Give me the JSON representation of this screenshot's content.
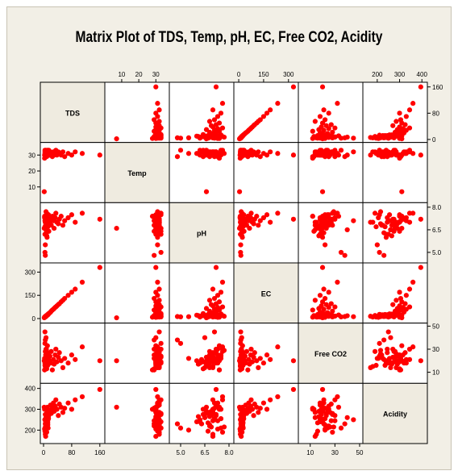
{
  "chart_data": {
    "type": "scatter-matrix",
    "title": "Matrix Plot of TDS, Temp, pH, EC, Free CO2, Acidity",
    "marker_color": "#ff0000",
    "diag_color": "#efebe0",
    "variables": [
      {
        "name": "TDS",
        "range": [
          0,
          165
        ],
        "ticks": [
          0,
          80,
          160
        ],
        "tick_labels": [
          "0",
          "80",
          "160"
        ]
      },
      {
        "name": "Temp",
        "range": [
          2,
          36
        ],
        "ticks": [
          10,
          20,
          30
        ],
        "tick_labels": [
          "10",
          "20",
          "30"
        ]
      },
      {
        "name": "pH",
        "range": [
          4.5,
          8.1
        ],
        "ticks": [
          5.0,
          6.5,
          8.0
        ],
        "tick_labels": [
          "5.0",
          "6.5",
          "8.0"
        ]
      },
      {
        "name": "EC",
        "range": [
          -10,
          340
        ],
        "ticks": [
          0,
          150,
          300
        ],
        "tick_labels": [
          "0",
          "150",
          "300"
        ]
      },
      {
        "name": "Free CO2",
        "range": [
          3,
          50
        ],
        "ticks": [
          10,
          30,
          50
        ],
        "tick_labels": [
          "10",
          "30",
          "50"
        ]
      },
      {
        "name": "Acidity",
        "range": [
          150,
          410
        ],
        "ticks": [
          200,
          300,
          400
        ],
        "tick_labels": [
          "200",
          "300",
          "400"
        ]
      }
    ],
    "axis_sides": {
      "top": [
        1,
        3,
        5
      ],
      "bottom": [
        0,
        2,
        4
      ],
      "left": [
        1,
        3,
        5
      ],
      "right": [
        0,
        2,
        4
      ]
    },
    "observations": [
      [
        5,
        32,
        7.0,
        10,
        15,
        180
      ],
      [
        4,
        30,
        6.2,
        10,
        18,
        250
      ],
      [
        5,
        31,
        5.5,
        12,
        22,
        200
      ],
      [
        6,
        29,
        6.8,
        14,
        25,
        220
      ],
      [
        8,
        32,
        7.2,
        16,
        30,
        270
      ],
      [
        10,
        31,
        6.0,
        22,
        20,
        240
      ],
      [
        3,
        28,
        7.4,
        9,
        12,
        300
      ],
      [
        4,
        33,
        5.0,
        11,
        35,
        210
      ],
      [
        7,
        30,
        6.5,
        18,
        40,
        260
      ],
      [
        9,
        32,
        7.6,
        20,
        28,
        190
      ],
      [
        2,
        7,
        6.6,
        5,
        20,
        310
      ],
      [
        6,
        30,
        7.0,
        15,
        14,
        170
      ],
      [
        5,
        29,
        4.8,
        13,
        38,
        230
      ],
      [
        4,
        32,
        7.1,
        12,
        45,
        250
      ],
      [
        11,
        31,
        6.9,
        25,
        26,
        215
      ],
      [
        3,
        30,
        7.3,
        8,
        22,
        205
      ],
      [
        12,
        30,
        6.7,
        26,
        16,
        235
      ],
      [
        14,
        31,
        7.5,
        30,
        22,
        255
      ],
      [
        15,
        33,
        6.4,
        32,
        19,
        275
      ],
      [
        18,
        30,
        7.0,
        38,
        24,
        295
      ],
      [
        20,
        32,
        7.2,
        42,
        18,
        320
      ],
      [
        22,
        31,
        6.8,
        48,
        28,
        280
      ],
      [
        25,
        29,
        7.4,
        55,
        12,
        305
      ],
      [
        28,
        32,
        7.1,
        60,
        21,
        330
      ],
      [
        30,
        30,
        6.6,
        65,
        17,
        290
      ],
      [
        33,
        31,
        7.3,
        72,
        25,
        315
      ],
      [
        35,
        33,
        7.6,
        75,
        30,
        345
      ],
      [
        38,
        30,
        7.0,
        82,
        19,
        300
      ],
      [
        42,
        32,
        6.9,
        90,
        23,
        270
      ],
      [
        45,
        31,
        7.2,
        96,
        27,
        325
      ],
      [
        50,
        30,
        7.4,
        108,
        20,
        310
      ],
      [
        55,
        32,
        6.8,
        118,
        14,
        285
      ],
      [
        60,
        29,
        7.1,
        130,
        22,
        305
      ],
      [
        70,
        31,
        7.3,
        150,
        18,
        330
      ],
      [
        80,
        30,
        7.5,
        170,
        25,
        300
      ],
      [
        90,
        32,
        7.0,
        190,
        21,
        345
      ],
      [
        110,
        31,
        7.6,
        235,
        32,
        360
      ],
      [
        160,
        30,
        7.2,
        330,
        20,
        395
      ],
      [
        6,
        33,
        6.2,
        14,
        18,
        240
      ],
      [
        8,
        31,
        6.5,
        17,
        14,
        260
      ],
      [
        10,
        30,
        7.0,
        21,
        26,
        285
      ],
      [
        12,
        32,
        6.8,
        24,
        22,
        225
      ],
      [
        7,
        29,
        7.3,
        16,
        30,
        245
      ],
      [
        9,
        31,
        6.1,
        19,
        17,
        265
      ],
      [
        13,
        33,
        7.5,
        27,
        24,
        210
      ],
      [
        16,
        30,
        6.9,
        34,
        20,
        290
      ],
      [
        5,
        32,
        7.2,
        11,
        28,
        275
      ],
      [
        4,
        31,
        6.7,
        10,
        16,
        195
      ],
      [
        11,
        30,
        7.4,
        23,
        33,
        310
      ],
      [
        8,
        32,
        6.3,
        18,
        21,
        230
      ],
      [
        6,
        30,
        7.1,
        13,
        19,
        255
      ],
      [
        10,
        33,
        6.6,
        20,
        23,
        280
      ],
      [
        7,
        31,
        7.7,
        15,
        29,
        215
      ],
      [
        9,
        29,
        6.4,
        19,
        13,
        300
      ],
      [
        12,
        32,
        7.0,
        25,
        27,
        245
      ],
      [
        14,
        30,
        6.8,
        29,
        18,
        265
      ]
    ]
  }
}
